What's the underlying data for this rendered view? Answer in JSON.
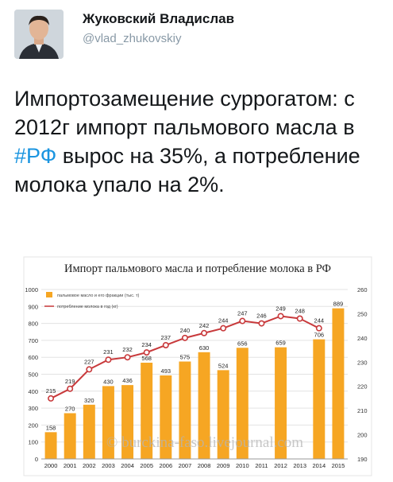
{
  "author": {
    "name": "Жуковский Владислав",
    "handle": "@vlad_zhukovskiy"
  },
  "tweet": {
    "text_before": "Импортозамещение суррогатом: с 2012г импорт пальмового масла в ",
    "hashtag": "#РФ",
    "text_after": " вырос на 35%, а потребление молока упало на 2%."
  },
  "colors": {
    "bar": "#f6a623",
    "line": "#c8393b",
    "grid": "#e3e3e3"
  },
  "chart_data": {
    "type": "bar",
    "title": "Импорт пальмового масла и потребление молока в РФ",
    "categories": [
      "2000",
      "2001",
      "2002",
      "2003",
      "2004",
      "2005",
      "2006",
      "2007",
      "2008",
      "2009",
      "2010",
      "2011",
      "2012",
      "2013",
      "2014",
      "2015"
    ],
    "series": [
      {
        "name": "пальмовое масло и его фракции (тыс. т)",
        "type": "bar",
        "axis": "left",
        "values": [
          158,
          270,
          320,
          430,
          436,
          568,
          493,
          575,
          630,
          524,
          656,
          null,
          659,
          null,
          706,
          889
        ],
        "labels": [
          "158",
          "270",
          "320",
          "430",
          "436",
          "568",
          "493",
          "575",
          "630",
          "524",
          "656",
          "",
          "659",
          "",
          "706",
          "889"
        ]
      },
      {
        "name": "потребление молока в год (кг)",
        "type": "line",
        "axis": "right",
        "values": [
          215,
          219,
          227,
          231,
          232,
          234,
          237,
          240,
          242,
          244,
          247,
          246,
          249,
          248,
          244,
          null
        ],
        "labels": [
          "215",
          "219",
          "227",
          "231",
          "232",
          "234",
          "237",
          "240",
          "242",
          "244",
          "247",
          "246",
          "249",
          "248",
          "244",
          ""
        ]
      }
    ],
    "y_left": {
      "min": 0,
      "max": 1000,
      "ticks": [
        "0",
        "100",
        "200",
        "300",
        "400",
        "500",
        "600",
        "700",
        "800",
        "900",
        "1000"
      ]
    },
    "y_right": {
      "min": 190,
      "max": 260,
      "ticks": [
        "190",
        "200",
        "210",
        "220",
        "230",
        "240",
        "250",
        "260"
      ]
    },
    "legend_position": "top-left",
    "grid": true,
    "watermark": "© burckina-faso.livejournal.com"
  }
}
